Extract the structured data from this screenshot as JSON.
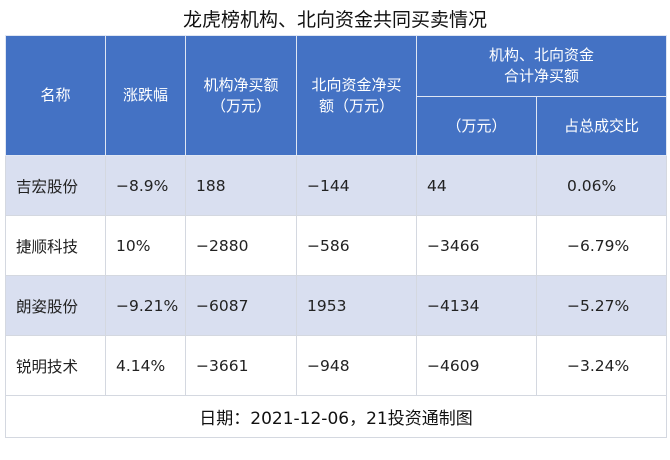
{
  "title": "龙虎榜机构、北向资金共同买卖情况",
  "headers": {
    "name": "名称",
    "change": "涨跌幅",
    "inst_line1": "机构净买额",
    "inst_line2": "（万元）",
    "north_line1": "北向资金净买",
    "north_line2": "额（万元）",
    "combined_line1": "机构、北向资金",
    "combined_line2": "合计净买额",
    "combined_amount": "（万元）",
    "combined_ratio": "占总成交比"
  },
  "rows": [
    {
      "name": "吉宏股份",
      "change": "−8.9%",
      "inst": "188",
      "north": "−144",
      "total": "44",
      "ratio": "0.06%"
    },
    {
      "name": "捷顺科技",
      "change": "10%",
      "inst": "−2880",
      "north": "−586",
      "total": "−3466",
      "ratio": "−6.79%"
    },
    {
      "name": "朗姿股份",
      "change": "−9.21%",
      "inst": "−6087",
      "north": "1953",
      "total": "−4134",
      "ratio": "−5.27%"
    },
    {
      "name": "锐明技术",
      "change": "4.14%",
      "inst": "−3661",
      "north": "−948",
      "total": "−4609",
      "ratio": "−3.24%"
    }
  ],
  "footer": "日期：2021-12-06，21投资通制图"
}
